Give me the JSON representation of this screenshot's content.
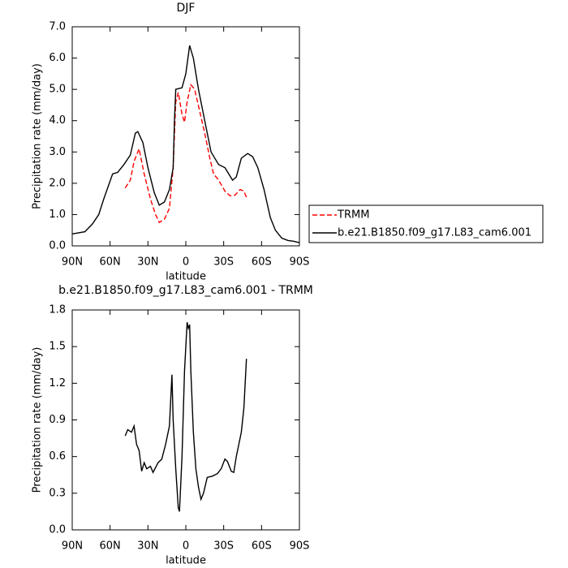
{
  "chart_data": [
    {
      "type": "line",
      "title": "DJF",
      "x_label": "latitude",
      "y_label": "Precipitation rate (mm/day)",
      "xlim": [
        90,
        -90
      ],
      "xticks": [
        {
          "value": 90,
          "label": "90N"
        },
        {
          "value": 60,
          "label": "60N"
        },
        {
          "value": 30,
          "label": "30N"
        },
        0,
        {
          "value": -30,
          "label": "30S"
        },
        {
          "value": -60,
          "label": "60S"
        },
        {
          "value": -90,
          "label": "90S"
        }
      ],
      "ylim": [
        0,
        7
      ],
      "yticks": [
        {
          "value": 0,
          "label": "0.0"
        },
        {
          "value": 1,
          "label": "1.0"
        },
        {
          "value": 2,
          "label": "2.0"
        },
        {
          "value": 3,
          "label": "3.0"
        },
        {
          "value": 4,
          "label": "4.0"
        },
        {
          "value": 5,
          "label": "5.0"
        },
        {
          "value": 6,
          "label": "6.0"
        },
        {
          "value": 7,
          "label": "7.0"
        }
      ],
      "legend": "right",
      "series": [
        {
          "name": "TRMM",
          "color": "#ff0000",
          "line_style": "dashed",
          "x": [
            48,
            44,
            41,
            37,
            33,
            28,
            24,
            21,
            17,
            13,
            10,
            8,
            6,
            3,
            1,
            -1,
            -4,
            -7,
            -11,
            -15,
            -19,
            -22,
            -26,
            -31,
            -35,
            -39,
            -43,
            -46,
            -48
          ],
          "values": [
            1.85,
            2.1,
            2.7,
            3.1,
            2.3,
            1.5,
            1.0,
            0.75,
            0.85,
            1.2,
            2.5,
            4.6,
            4.9,
            4.2,
            3.95,
            4.6,
            5.15,
            5.0,
            4.3,
            3.6,
            2.8,
            2.3,
            2.1,
            1.75,
            1.6,
            1.62,
            1.8,
            1.75,
            1.55
          ]
        },
        {
          "name": "b.e21.B1850.f09_g17.L83_cam6.001",
          "color": "#000000",
          "line_style": "solid",
          "x": [
            90,
            80,
            74,
            69,
            65,
            58,
            54,
            49,
            44,
            40,
            38,
            34,
            30,
            25,
            21,
            17,
            13,
            10,
            9,
            8,
            3,
            0,
            -3,
            -6,
            -10,
            -15,
            -20,
            -26,
            -31,
            -37,
            -40,
            -44,
            -49,
            -53,
            -57,
            -62,
            -67,
            -71,
            -76,
            -81,
            -85,
            -90
          ],
          "values": [
            0.38,
            0.45,
            0.7,
            1.0,
            1.5,
            2.3,
            2.35,
            2.6,
            2.9,
            3.6,
            3.65,
            3.3,
            2.5,
            1.7,
            1.3,
            1.4,
            1.8,
            2.5,
            4.0,
            5.0,
            5.05,
            5.5,
            6.4,
            6.0,
            5.0,
            4.0,
            3.0,
            2.6,
            2.5,
            2.1,
            2.2,
            2.8,
            2.95,
            2.85,
            2.5,
            1.8,
            0.9,
            0.5,
            0.25,
            0.17,
            0.15,
            0.1
          ]
        }
      ]
    },
    {
      "type": "line",
      "title": "b.e21.B1850.f09_g17.L83_cam6.001 - TRMM",
      "x_label": "latitude",
      "y_label": "Precipitation rate (mm/day)",
      "xlim": [
        90,
        -90
      ],
      "xticks": [
        {
          "value": 90,
          "label": "90N"
        },
        {
          "value": 60,
          "label": "60N"
        },
        {
          "value": 30,
          "label": "30N"
        },
        0,
        {
          "value": -30,
          "label": "30S"
        },
        {
          "value": -60,
          "label": "60S"
        },
        {
          "value": -90,
          "label": "90S"
        }
      ],
      "ylim": [
        0,
        1.8
      ],
      "yticks": [
        {
          "value": 0,
          "label": "0.0"
        },
        0.3,
        0.6,
        0.9,
        1.2,
        1.5,
        1.8
      ],
      "series": [
        {
          "color": "#000000",
          "line_style": "solid",
          "x": [
            48,
            46,
            43,
            41,
            39,
            37,
            35,
            33,
            31,
            28,
            26,
            22,
            19,
            16,
            13,
            11,
            10,
            8,
            6,
            5,
            3,
            1,
            -1,
            -2,
            -3,
            -4,
            -6,
            -8,
            -10,
            -12,
            -14,
            -17,
            -21,
            -25,
            -28,
            -31,
            -33,
            -36,
            -38,
            -40,
            -44,
            -46,
            -48
          ],
          "values": [
            0.77,
            0.82,
            0.8,
            0.85,
            0.7,
            0.65,
            0.48,
            0.55,
            0.5,
            0.52,
            0.47,
            0.55,
            0.58,
            0.7,
            0.85,
            1.27,
            0.9,
            0.5,
            0.18,
            0.15,
            0.6,
            1.3,
            1.7,
            1.65,
            1.68,
            1.3,
            0.8,
            0.5,
            0.35,
            0.25,
            0.3,
            0.43,
            0.44,
            0.46,
            0.5,
            0.58,
            0.56,
            0.48,
            0.47,
            0.6,
            0.8,
            1.0,
            1.4
          ]
        }
      ]
    }
  ]
}
